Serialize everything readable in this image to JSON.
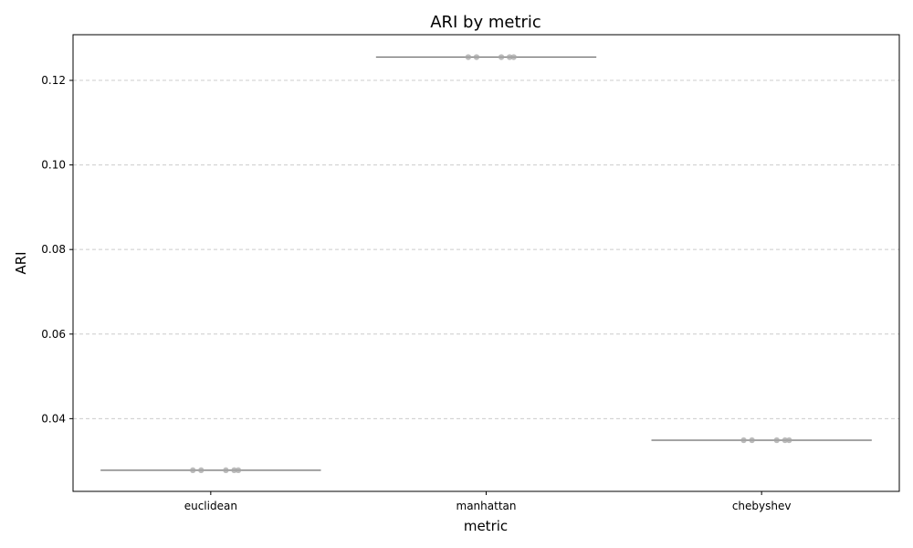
{
  "chart_data": {
    "type": "box",
    "title": "ARI by metric",
    "xlabel": "metric",
    "ylabel": "ARI",
    "categories": [
      "euclidean",
      "manhattan",
      "chebyshev"
    ],
    "ylim": [
      0.0228,
      0.1308
    ],
    "yticks": [
      0.04,
      0.06,
      0.08,
      0.1,
      0.12
    ],
    "ytick_labels": [
      "0.04",
      "0.06",
      "0.08",
      "0.10",
      "0.12"
    ],
    "grid": "y-dashed",
    "series": [
      {
        "category": "euclidean",
        "median": 0.0278,
        "points": [
          0.0278,
          0.0278,
          0.0278,
          0.0278,
          0.0278
        ]
      },
      {
        "category": "manhattan",
        "median": 0.1255,
        "points": [
          0.1255,
          0.1255,
          0.1255,
          0.1255,
          0.1255
        ]
      },
      {
        "category": "chebyshev",
        "median": 0.0349,
        "points": [
          0.0349,
          0.0349,
          0.0349,
          0.0349,
          0.0349
        ]
      }
    ],
    "colors": {
      "box_line": "#6e6e6e",
      "points": "#a6a6a6",
      "grid": "#cccccc"
    }
  }
}
